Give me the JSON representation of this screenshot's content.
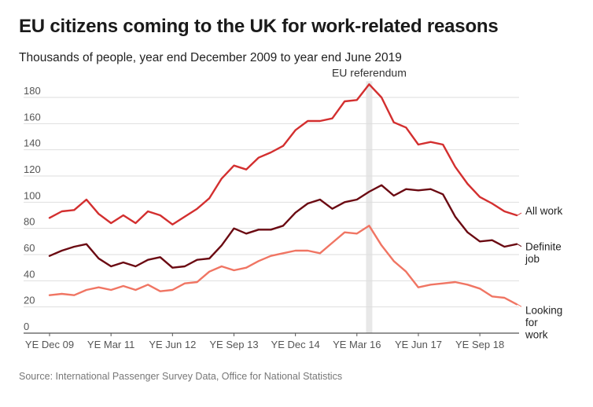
{
  "title": "EU citizens coming to the UK for work-related reasons",
  "subtitle": "Thousands of people, year end December 2009 to year end June 2019",
  "source": "Source: International Passenger Survey Data, Office for National Statistics",
  "chart_data": {
    "type": "line",
    "ylim": [
      0,
      190
    ],
    "yticks": [
      0,
      20,
      40,
      60,
      80,
      100,
      120,
      140,
      160,
      180
    ],
    "grid": true,
    "x_count": 39,
    "xtick_labels": [
      {
        "index": 0,
        "label": "YE Dec 09"
      },
      {
        "index": 5,
        "label": "YE Mar 11"
      },
      {
        "index": 10,
        "label": "YE Jun 12"
      },
      {
        "index": 15,
        "label": "YE Sep 13"
      },
      {
        "index": 20,
        "label": "YE Dec 14"
      },
      {
        "index": 25,
        "label": "YE Mar 16"
      },
      {
        "index": 30,
        "label": "YE Jun 17"
      },
      {
        "index": 35,
        "label": "YE Sep 18"
      }
    ],
    "annotation": {
      "label": "EU referendum",
      "index": 26
    },
    "series": [
      {
        "name": "All work",
        "label_lines": [
          "All work"
        ],
        "color": "#d32f2f",
        "values": [
          88,
          93,
          94,
          102,
          91,
          84,
          90,
          84,
          93,
          90,
          83,
          89,
          95,
          103,
          118,
          128,
          125,
          134,
          138,
          143,
          155,
          162,
          162,
          164,
          177,
          178,
          190,
          180,
          161,
          157,
          144,
          146,
          144,
          127,
          114,
          104,
          99,
          93,
          90
        ]
      },
      {
        "name": "Definite job",
        "label_lines": [
          "Definite",
          "job"
        ],
        "color": "#6b0a12",
        "values": [
          59,
          63,
          66,
          68,
          57,
          51,
          54,
          51,
          56,
          58,
          50,
          51,
          56,
          57,
          67,
          80,
          76,
          79,
          79,
          82,
          92,
          99,
          102,
          95,
          100,
          102,
          108,
          113,
          105,
          110,
          109,
          110,
          106,
          89,
          77,
          70,
          71,
          66,
          68
        ]
      },
      {
        "name": "Looking for work",
        "label_lines": [
          "Looking",
          "for",
          "work"
        ],
        "color": "#f07563",
        "values": [
          29,
          30,
          29,
          33,
          35,
          33,
          36,
          33,
          37,
          32,
          33,
          38,
          39,
          47,
          51,
          48,
          50,
          55,
          59,
          61,
          63,
          63,
          61,
          69,
          77,
          76,
          82,
          67,
          55,
          47,
          35,
          37,
          38,
          39,
          37,
          34,
          28,
          27,
          22
        ]
      }
    ]
  }
}
